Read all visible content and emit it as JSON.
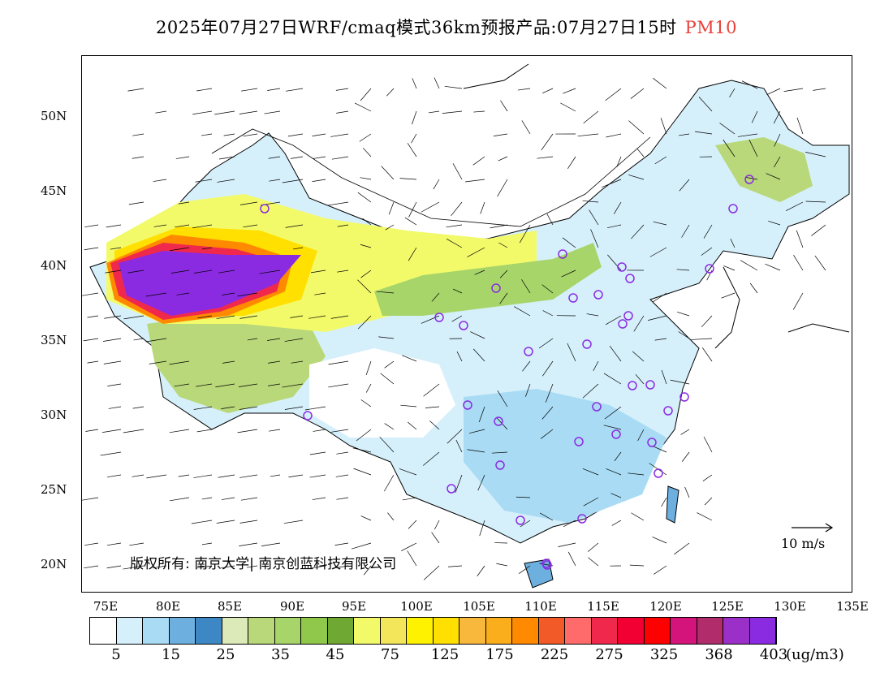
{
  "title": {
    "main": "2025年07月27日WRF/cmaq模式36km预报产品:07月27日15时",
    "pollutant": "PM10"
  },
  "lat_labels": [
    "50N",
    "45N",
    "40N",
    "35N",
    "30N",
    "25N",
    "20N"
  ],
  "lon_labels": [
    "75E",
    "80E",
    "85E",
    "90E",
    "95E",
    "100E",
    "105E",
    "110E",
    "115E",
    "120E",
    "125E",
    "130E",
    "135E"
  ],
  "copyright": "版权所有: 南京大学| 南京创蓝科技有限公司",
  "wind_scale": "10 m/s",
  "colorbar": {
    "colors": [
      "#ffffff",
      "#d6f0fb",
      "#a9dcf4",
      "#6db0e0",
      "#3d88c4",
      "#dce9b8",
      "#b8d879",
      "#a7d56a",
      "#8fc84a",
      "#6fa832",
      "#f2fa6a",
      "#f4e65a",
      "#fff200",
      "#ffe000",
      "#f8b83c",
      "#fbae1c",
      "#ff8a00",
      "#f25a27",
      "#ff6b6b",
      "#f0284c",
      "#f20034",
      "#ff0000",
      "#d4147a",
      "#b02c6a",
      "#9b30c8",
      "#8a2be2"
    ],
    "labels": [
      "5",
      "15",
      "25",
      "35",
      "45",
      "75",
      "125",
      "175",
      "225",
      "275",
      "325",
      "368",
      "403"
    ],
    "unit": "(ug/m3)"
  },
  "stations": 34
}
